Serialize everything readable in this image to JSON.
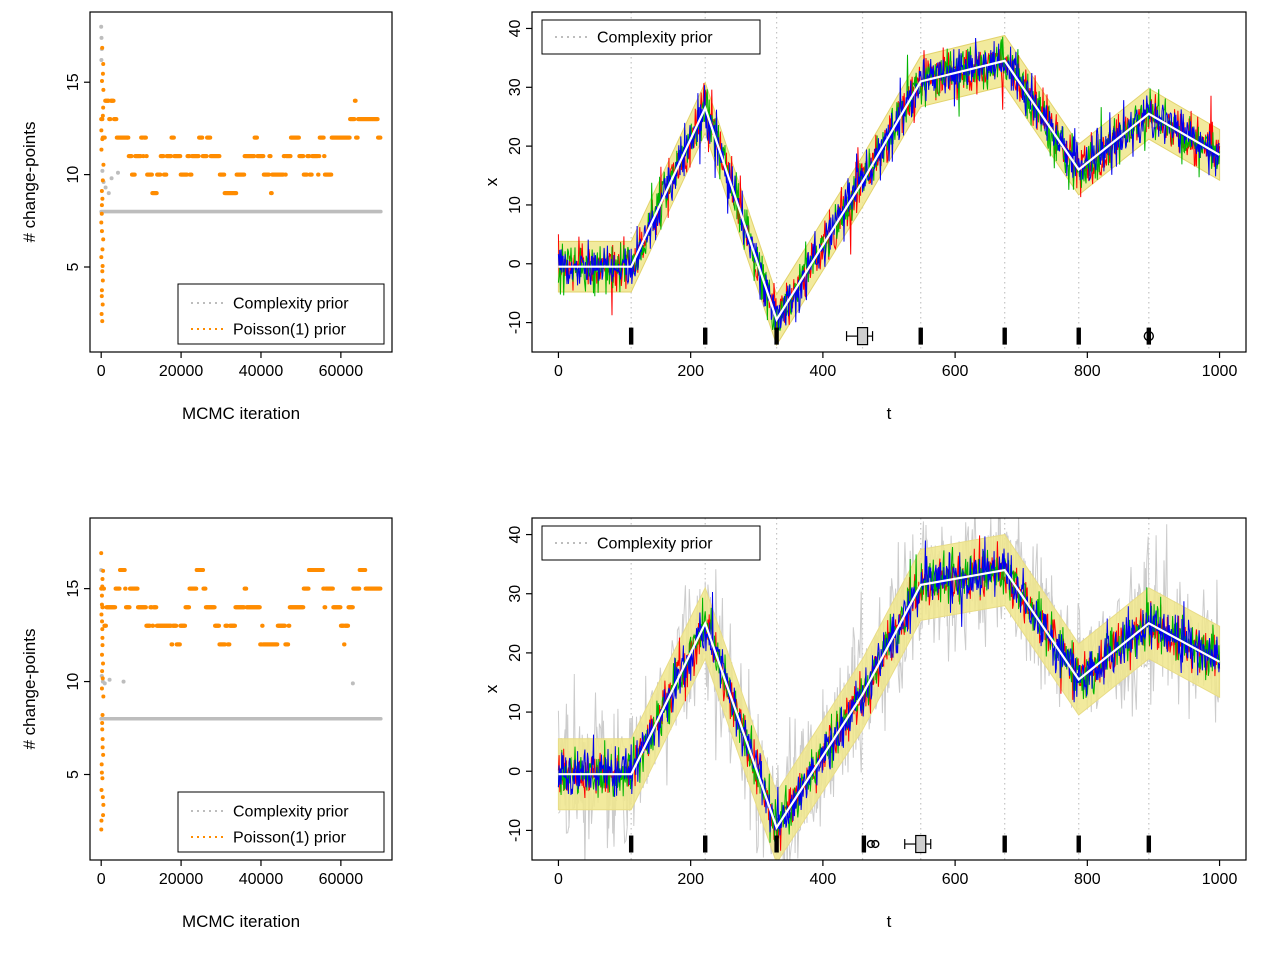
{
  "figure": {
    "background": "#ffffff"
  },
  "colors": {
    "complexity_prior": "#bdbdbd",
    "poisson_prior": "#ff8c00",
    "series_red": "#ff0000",
    "series_green": "#00b400",
    "series_blue": "#0000ee",
    "credible_band": "#f0e68c",
    "mean_line": "#ffffff",
    "gridline": "#c4c4c4"
  },
  "chart_data": [
    {
      "id": "mcmc-trace-run1",
      "type": "scatter",
      "xlabel": "MCMC iteration",
      "ylabel": "# change-points",
      "xlim": [
        -2800,
        72800
      ],
      "ylim": [
        0.4,
        18.8
      ],
      "xticks": [
        0,
        20000,
        40000,
        60000
      ],
      "yticks": [
        5,
        10,
        15
      ],
      "legend": {
        "position": "bottom-right",
        "entries": [
          {
            "label": "Complexity prior",
            "color": "#bdbdbd"
          },
          {
            "label": "Poisson(1) prior",
            "color": "#ff8c00"
          }
        ]
      },
      "complexity_prior": {
        "constant_level": 8,
        "x_max": 70000,
        "burnin_points": [
          [
            0,
            18
          ],
          [
            80,
            17.4
          ],
          [
            160,
            16.8
          ],
          [
            60,
            16.2
          ],
          [
            300,
            10.2
          ],
          [
            600,
            9.6
          ],
          [
            1100,
            9.3
          ],
          [
            1900,
            9.0
          ],
          [
            2600,
            9.8
          ],
          [
            4200,
            10.1
          ]
        ]
      },
      "poisson_prior": {
        "x_max": 70000,
        "n_samples": 700,
        "start_level": 13,
        "level_min": 9,
        "level_max": 16,
        "level_mode": 11,
        "burnin_column": {
          "x_max": 600,
          "y_min": 2,
          "y_max": 17
        },
        "seed": 42
      }
    },
    {
      "id": "signal-posterior-run1",
      "type": "line",
      "xlabel": "t",
      "ylabel": "x",
      "xlim": [
        -40,
        1040
      ],
      "ylim": [
        -15,
        42.8
      ],
      "xticks": [
        0,
        200,
        400,
        600,
        800,
        1000
      ],
      "yticks": [
        -10,
        0,
        10,
        20,
        30,
        40
      ],
      "legend": {
        "position": "top-left",
        "entries": [
          {
            "label": "Complexity prior",
            "color": "#bdbdbd"
          }
        ]
      },
      "trend": {
        "t": [
          0,
          110,
          222,
          330,
          460,
          548,
          675,
          787,
          893,
          1000
        ],
        "x": [
          -0.5,
          -0.5,
          26.5,
          -9.5,
          14,
          31,
          34.5,
          16,
          25.5,
          18.5
        ]
      },
      "changepoints": [
        110,
        222,
        330,
        460,
        548,
        675,
        787,
        893
      ],
      "credible_band": {
        "halfwidth": 4.3,
        "color": "#f0e68c",
        "edge_color": "#e3d36d"
      },
      "noisy_series": [
        {
          "name": "series-red",
          "color": "#ff0000",
          "sd": 2.0,
          "seed": 7
        },
        {
          "name": "series-green",
          "color": "#00b400",
          "sd": 2.0,
          "seed": 8
        },
        {
          "name": "series-blue",
          "color": "#0000ee",
          "sd": 2.0,
          "seed": 9
        }
      ],
      "mean_line": {
        "color": "#ffffff"
      },
      "gray_noise": null,
      "marks": {
        "y": -12.3,
        "items": [
          {
            "x": 110,
            "style": "bar"
          },
          {
            "x": 222,
            "style": "bar"
          },
          {
            "x": 330,
            "style": "bar"
          },
          {
            "x": 460,
            "style": "graybox"
          },
          {
            "x": 548,
            "style": "bar"
          },
          {
            "x": 675,
            "style": "bar"
          },
          {
            "x": 787,
            "style": "bar"
          },
          {
            "x": 893,
            "style": "phi"
          }
        ]
      }
    },
    {
      "id": "mcmc-trace-run2",
      "type": "scatter",
      "xlabel": "MCMC iteration",
      "ylabel": "# change-points",
      "xlim": [
        -2800,
        72800
      ],
      "ylim": [
        0.4,
        18.8
      ],
      "xticks": [
        0,
        20000,
        40000,
        60000
      ],
      "yticks": [
        5,
        10,
        15
      ],
      "legend": {
        "position": "bottom-right",
        "entries": [
          {
            "label": "Complexity prior",
            "color": "#bdbdbd"
          },
          {
            "label": "Poisson(1) prior",
            "color": "#ff8c00"
          }
        ]
      },
      "complexity_prior": {
        "constant_level": 8,
        "x_max": 70000,
        "burnin_points": [
          [
            0,
            16
          ],
          [
            150,
            10.3
          ],
          [
            420,
            10
          ],
          [
            900,
            9.9
          ],
          [
            2100,
            10.1
          ],
          [
            5600,
            10
          ],
          [
            63000,
            9.9
          ]
        ]
      },
      "poisson_prior": {
        "x_max": 70000,
        "n_samples": 700,
        "start_level": 15,
        "level_min": 8,
        "level_max": 17,
        "level_mode": 14,
        "burnin_column": {
          "x_max": 600,
          "y_min": 2,
          "y_max": 17
        },
        "seed": 77
      }
    },
    {
      "id": "signal-posterior-run2",
      "type": "line",
      "xlabel": "t",
      "ylabel": "x",
      "xlim": [
        -40,
        1040
      ],
      "ylim": [
        -15,
        42.8
      ],
      "xticks": [
        0,
        200,
        400,
        600,
        800,
        1000
      ],
      "yticks": [
        -10,
        0,
        10,
        20,
        30,
        40
      ],
      "legend": {
        "position": "top-left",
        "entries": [
          {
            "label": "Complexity prior",
            "color": "#bdbdbd"
          }
        ]
      },
      "trend": {
        "t": [
          0,
          110,
          222,
          330,
          460,
          548,
          675,
          787,
          893,
          1000
        ],
        "x": [
          -0.5,
          -0.5,
          25,
          -9.5,
          13,
          31.5,
          34,
          15.5,
          25,
          18.5
        ]
      },
      "changepoints": [
        110,
        222,
        330,
        460,
        548,
        675,
        787,
        893
      ],
      "credible_band": {
        "halfwidth": 6.0,
        "color": "#f0e68c",
        "edge_color": "#e8dc87"
      },
      "noisy_series": [
        {
          "name": "series-red",
          "color": "#ff0000",
          "sd": 2.0,
          "seed": 17
        },
        {
          "name": "series-green",
          "color": "#00b400",
          "sd": 2.0,
          "seed": 18
        },
        {
          "name": "series-blue",
          "color": "#0000ee",
          "sd": 2.0,
          "seed": 19
        }
      ],
      "mean_line": {
        "color": "#ffffff"
      },
      "gray_noise": {
        "sd": 5.4,
        "color": "#cccccc",
        "seeds": [
          21,
          22,
          23
        ]
      },
      "marks": {
        "y": -12.3,
        "items": [
          {
            "x": 110,
            "style": "bar"
          },
          {
            "x": 222,
            "style": "bar"
          },
          {
            "x": 330,
            "style": "bar"
          },
          {
            "x": 462,
            "style": "bar-oo"
          },
          {
            "x": 548,
            "style": "graybox"
          },
          {
            "x": 675,
            "style": "bar"
          },
          {
            "x": 787,
            "style": "bar"
          },
          {
            "x": 893,
            "style": "bar"
          }
        ]
      }
    }
  ]
}
